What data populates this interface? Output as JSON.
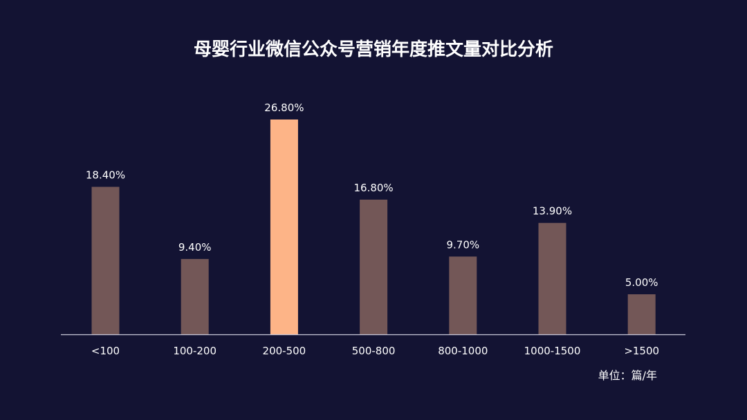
{
  "chart_data": {
    "type": "bar",
    "title": "母婴行业微信公众号营销年度推文量对比分析",
    "unit_note": "单位：篇/年",
    "categories": [
      "<100",
      "100-200",
      "200-500",
      "500-800",
      "800-1000",
      "1000-1500",
      ">1500"
    ],
    "values": [
      18.4,
      9.4,
      26.8,
      16.8,
      9.7,
      13.9,
      5.0
    ],
    "value_labels": [
      "18.40%",
      "9.40%",
      "26.80%",
      "16.80%",
      "9.70%",
      "13.90%",
      "5.00%"
    ],
    "highlight_index": 2,
    "ylim": [
      0,
      26.8
    ],
    "grid": false,
    "legend": "none",
    "colors": {
      "background": "#131333",
      "bar": "#735757",
      "highlight": "#FDB487",
      "axis": "#c8c8d8",
      "text": "#ffffff"
    }
  }
}
